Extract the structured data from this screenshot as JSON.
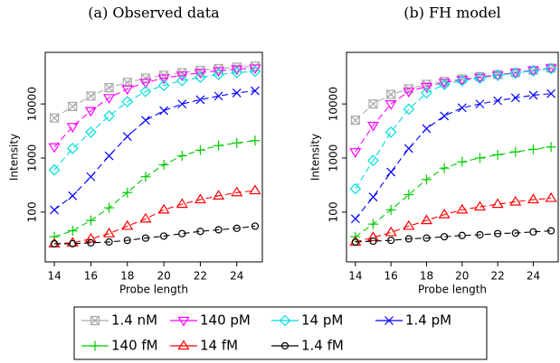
{
  "chart_data": [
    {
      "type": "line",
      "title": "(a) Observed data",
      "x_label": "Probe length",
      "y_label": "Intensity",
      "yscale": "log",
      "x": [
        14,
        15,
        16,
        17,
        18,
        19,
        20,
        21,
        22,
        23,
        24,
        25
      ],
      "xlim": [
        13.5,
        25.4
      ],
      "xticks": [
        14,
        16,
        18,
        20,
        22,
        24
      ],
      "ylim": [
        12,
        90000
      ],
      "yticks": [
        100,
        1000,
        10000
      ],
      "series": [
        {
          "name": "1.4 nM",
          "color": "#aaaaaa",
          "marker": "boxx",
          "values": [
            5500,
            9000,
            14000,
            20000,
            25000,
            30000,
            34000,
            38000,
            42000,
            45000,
            48000,
            50000
          ]
        },
        {
          "name": "140 pM",
          "color": "#ff00ff",
          "marker": "tridown",
          "values": [
            1600,
            3800,
            7500,
            13000,
            19000,
            25000,
            30000,
            34000,
            38000,
            41000,
            44000,
            46000
          ]
        },
        {
          "name": "14 pM",
          "color": "#00dddd",
          "marker": "diamond",
          "values": [
            600,
            1500,
            3000,
            6000,
            11000,
            17000,
            22000,
            27000,
            31000,
            35000,
            38000,
            40000
          ]
        },
        {
          "name": "1.4 pM",
          "color": "#0000ff",
          "marker": "cross",
          "values": [
            110,
            200,
            450,
            1100,
            2500,
            5000,
            7500,
            10000,
            12000,
            14000,
            16000,
            17500
          ]
        },
        {
          "name": "140 fM",
          "color": "#00cc00",
          "marker": "plus",
          "values": [
            35,
            45,
            70,
            120,
            230,
            450,
            750,
            1100,
            1400,
            1700,
            1900,
            2100
          ]
        },
        {
          "name": "14 fM",
          "color": "#ff0000",
          "marker": "triup",
          "values": [
            26,
            27,
            32,
            40,
            55,
            75,
            110,
            140,
            170,
            200,
            230,
            250
          ]
        },
        {
          "name": "1.4 fM",
          "color": "#000000",
          "marker": "circle",
          "values": [
            26,
            26,
            27,
            28,
            30,
            33,
            36,
            40,
            44,
            47,
            50,
            55
          ]
        }
      ]
    },
    {
      "type": "line",
      "title": "(b) FH model",
      "x_label": "Probe length",
      "y_label": "Intensity",
      "yscale": "log",
      "x": [
        14,
        15,
        16,
        17,
        18,
        19,
        20,
        21,
        22,
        23,
        24,
        25
      ],
      "xlim": [
        13.5,
        25.4
      ],
      "xticks": [
        14,
        16,
        18,
        20,
        22,
        24
      ],
      "ylim": [
        12,
        90000
      ],
      "yticks": [
        100,
        1000,
        10000
      ],
      "series": [
        {
          "name": "1.4 nM",
          "color": "#aaaaaa",
          "marker": "boxx",
          "values": [
            5000,
            10000,
            15000,
            19000,
            23000,
            26000,
            29000,
            32000,
            35000,
            38000,
            42000,
            46000
          ]
        },
        {
          "name": "140 pM",
          "color": "#ff00ff",
          "marker": "tridown",
          "values": [
            1300,
            4000,
            10000,
            17000,
            21000,
            25000,
            28000,
            31000,
            34000,
            38000,
            42000,
            46000
          ]
        },
        {
          "name": "14 pM",
          "color": "#00dddd",
          "marker": "diamond",
          "values": [
            270,
            900,
            3000,
            8000,
            16000,
            23000,
            27000,
            30000,
            34000,
            37000,
            41000,
            45000
          ]
        },
        {
          "name": "1.4 pM",
          "color": "#0000ff",
          "marker": "cross",
          "values": [
            75,
            190,
            550,
            1500,
            3500,
            6000,
            8500,
            10000,
            11500,
            13000,
            14500,
            15500
          ]
        },
        {
          "name": "140 fM",
          "color": "#00cc00",
          "marker": "plus",
          "values": [
            35,
            60,
            110,
            210,
            400,
            650,
            850,
            1000,
            1150,
            1300,
            1450,
            1600
          ]
        },
        {
          "name": "14 fM",
          "color": "#ff0000",
          "marker": "triup",
          "values": [
            28,
            34,
            42,
            55,
            70,
            90,
            110,
            125,
            140,
            155,
            170,
            180
          ]
        },
        {
          "name": "1.4 fM",
          "color": "#000000",
          "marker": "circle",
          "values": [
            28,
            29,
            30,
            32,
            33,
            35,
            37,
            38,
            40,
            41,
            43,
            45
          ]
        }
      ]
    }
  ]
}
